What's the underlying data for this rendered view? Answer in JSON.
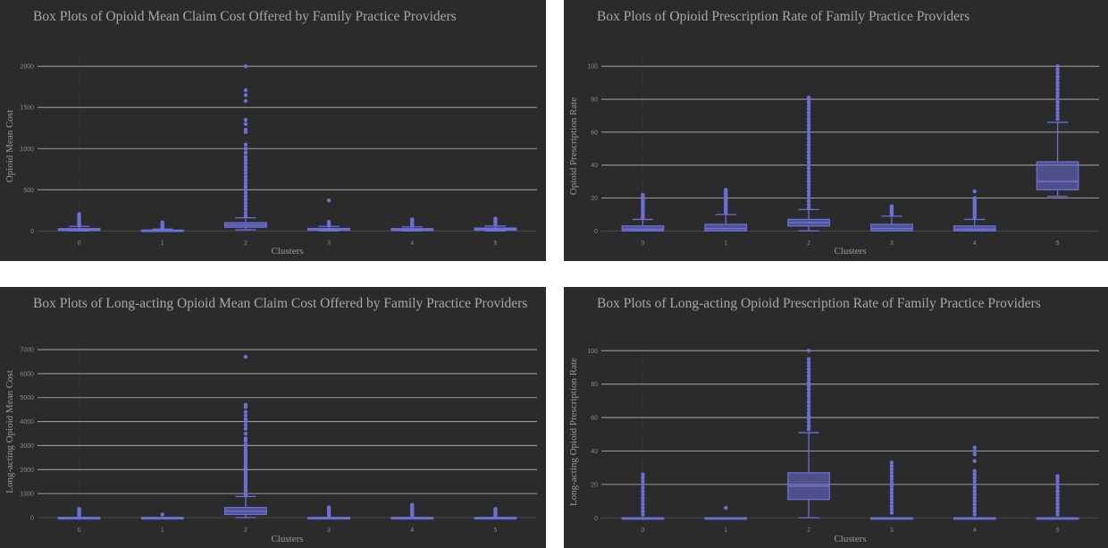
{
  "chart_data": [
    {
      "type": "box",
      "title": "Box Plots of Opioid Mean Claim Cost Offered by Family Practice Providers",
      "xlabel": "Clusters",
      "ylabel": "Opioid Mean Cost",
      "categories": [
        "0",
        "1",
        "2",
        "3",
        "4",
        "5"
      ],
      "ylim": [
        -40,
        2100
      ],
      "yticks": [
        0,
        500,
        1000,
        1500,
        2000
      ],
      "boxes": [
        {
          "min": 0,
          "q1": 5,
          "median": 14,
          "q3": 28,
          "max": 55,
          "outliers": [
            65,
            80,
            95,
            110,
            130,
            150,
            170,
            190,
            205
          ]
        },
        {
          "min": 0,
          "q1": 2,
          "median": 5,
          "q3": 10,
          "max": 22,
          "outliers": [
            30,
            45,
            60,
            80,
            105
          ]
        },
        {
          "min": 15,
          "q1": 45,
          "median": 70,
          "q3": 100,
          "max": 160,
          "outliers": [
            180,
            220,
            260,
            300,
            340,
            380,
            420,
            460,
            500,
            540,
            580,
            620,
            660,
            700,
            740,
            780,
            820,
            860,
            900,
            950,
            1000,
            1050,
            1200,
            1230,
            1300,
            1350,
            1580,
            1650,
            1710,
            2000
          ]
        },
        {
          "min": 0,
          "q1": 8,
          "median": 16,
          "q3": 30,
          "max": 55,
          "outliers": [
            65,
            80,
            95,
            110,
            370
          ]
        },
        {
          "min": 0,
          "q1": 6,
          "median": 14,
          "q3": 28,
          "max": 50,
          "outliers": [
            65,
            80,
            95,
            110,
            125,
            140
          ]
        },
        {
          "min": 0,
          "q1": 10,
          "median": 22,
          "q3": 35,
          "max": 60,
          "outliers": [
            75,
            90,
            110,
            130,
            150
          ]
        }
      ]
    },
    {
      "type": "box",
      "title": "Box Plots of Opioid Prescription Rate of Family Practice Providers",
      "xlabel": "Clusters",
      "ylabel": "Opioid Prescription Rate",
      "categories": [
        "0",
        "1",
        "2",
        "3",
        "4",
        "5"
      ],
      "ylim": [
        -2,
        105
      ],
      "yticks": [
        0,
        20,
        40,
        60,
        80,
        100
      ],
      "boxes": [
        {
          "min": 0,
          "q1": 0,
          "median": 1,
          "q3": 3,
          "max": 7,
          "outliers": [
            8,
            9,
            10,
            11,
            12,
            13,
            14,
            15,
            16,
            17,
            18,
            19,
            20,
            21,
            22
          ]
        },
        {
          "min": 0,
          "q1": 0,
          "median": 1.5,
          "q3": 4,
          "max": 10,
          "outliers": [
            11,
            12,
            13,
            14,
            15,
            16,
            17,
            18,
            19,
            20,
            21,
            22,
            23,
            24,
            25
          ]
        },
        {
          "min": 0,
          "q1": 3,
          "median": 5,
          "q3": 7,
          "max": 13,
          "outliers": [
            14,
            16,
            18,
            20,
            22,
            24,
            26,
            28,
            30,
            32,
            34,
            36,
            38,
            40,
            42,
            44,
            46,
            48,
            50,
            52,
            54,
            56,
            58,
            60,
            62,
            64,
            66,
            68,
            70,
            72,
            74,
            76,
            78,
            80,
            81
          ]
        },
        {
          "min": 0,
          "q1": 0,
          "median": 1.5,
          "q3": 4,
          "max": 9,
          "outliers": [
            10,
            11,
            12,
            13,
            14,
            15
          ]
        },
        {
          "min": 0,
          "q1": 0,
          "median": 1,
          "q3": 3,
          "max": 7,
          "outliers": [
            8,
            9,
            10,
            11,
            12,
            13,
            14,
            15,
            16,
            17,
            18,
            19,
            20,
            24
          ]
        },
        {
          "min": 21,
          "q1": 25,
          "median": 30,
          "q3": 42,
          "max": 66,
          "outliers": [
            68,
            70,
            72,
            74,
            76,
            78,
            80,
            82,
            84,
            86,
            88,
            90,
            92,
            94,
            96,
            98,
            100
          ]
        }
      ]
    },
    {
      "type": "box",
      "title": "Box Plots of Long-acting Opioid Mean Claim Cost  Offered by Family Practice Providers",
      "xlabel": "Clusters",
      "ylabel": "Long-acting Opioid Mean Cost",
      "categories": [
        "0",
        "1",
        "2",
        "3",
        "4",
        "5"
      ],
      "ylim": [
        -150,
        7300
      ],
      "yticks": [
        0,
        1000,
        2000,
        3000,
        4000,
        5000,
        6000,
        7000
      ],
      "boxes": [
        {
          "min": 0,
          "q1": 0,
          "median": 0,
          "q3": 0,
          "max": 0,
          "outliers": [
            40,
            80,
            120,
            160,
            200,
            240,
            280,
            320,
            360
          ]
        },
        {
          "min": 0,
          "q1": 0,
          "median": 0,
          "q3": 0,
          "max": 0,
          "outliers": [
            130
          ]
        },
        {
          "min": 0,
          "q1": 130,
          "median": 260,
          "q3": 420,
          "max": 880,
          "outliers": [
            950,
            1050,
            1150,
            1250,
            1350,
            1450,
            1550,
            1650,
            1750,
            1850,
            1950,
            2050,
            2150,
            2250,
            2350,
            2450,
            2550,
            2650,
            2750,
            2850,
            2950,
            3050,
            3200,
            3300,
            3500,
            3700,
            3850,
            4000,
            4100,
            4250,
            4400,
            4600,
            4700,
            6700
          ]
        },
        {
          "min": 0,
          "q1": 0,
          "median": 0,
          "q3": 0,
          "max": 0,
          "outliers": [
            60,
            120,
            180,
            240,
            300,
            360,
            430
          ]
        },
        {
          "min": 0,
          "q1": 0,
          "median": 0,
          "q3": 0,
          "max": 0,
          "outliers": [
            60,
            120,
            180,
            240,
            300,
            360,
            420,
            480,
            530
          ]
        },
        {
          "min": 0,
          "q1": 0,
          "median": 0,
          "q3": 0,
          "max": 0,
          "outliers": [
            60,
            120,
            180,
            240,
            300,
            360
          ]
        }
      ]
    },
    {
      "type": "box",
      "title": "Box Plots of Long-acting Opioid Prescription Rate of Family Practice Providers",
      "xlabel": "Clusters",
      "ylabel": "Long-acting Opioid Prescription Rate",
      "categories": [
        "0",
        "1",
        "2",
        "3",
        "4",
        "5"
      ],
      "ylim": [
        -2,
        105
      ],
      "yticks": [
        0,
        20,
        40,
        60,
        80,
        100
      ],
      "boxes": [
        {
          "min": 0,
          "q1": 0,
          "median": 0,
          "q3": 0,
          "max": 0,
          "outliers": [
            2,
            4,
            6,
            8,
            10,
            12,
            14,
            16,
            18,
            20,
            22,
            24,
            26
          ]
        },
        {
          "min": 0,
          "q1": 0,
          "median": 0,
          "q3": 0,
          "max": 0,
          "outliers": [
            6
          ]
        },
        {
          "min": 0,
          "q1": 11,
          "median": 19,
          "q3": 27,
          "max": 51,
          "outliers": [
            53,
            55,
            57,
            59,
            61,
            63,
            65,
            67,
            69,
            71,
            73,
            75,
            77,
            79,
            81,
            83,
            85,
            87,
            89,
            91,
            93,
            95,
            100
          ]
        },
        {
          "min": 0,
          "q1": 0,
          "median": 0,
          "q3": 0,
          "max": 0,
          "outliers": [
            3,
            5,
            7,
            9,
            11,
            13,
            15,
            17,
            19,
            21,
            23,
            25,
            27,
            29,
            31,
            33
          ]
        },
        {
          "min": 0,
          "q1": 0,
          "median": 0,
          "q3": 0,
          "max": 0,
          "outliers": [
            2,
            4,
            6,
            8,
            10,
            12,
            14,
            16,
            18,
            20,
            22,
            24,
            26,
            28,
            34,
            38,
            40,
            42
          ]
        },
        {
          "min": 0,
          "q1": 0,
          "median": 0,
          "q3": 0,
          "max": 0,
          "outliers": [
            2,
            4,
            6,
            8,
            10,
            12,
            14,
            16,
            18,
            20,
            22,
            24,
            25
          ]
        }
      ]
    }
  ]
}
